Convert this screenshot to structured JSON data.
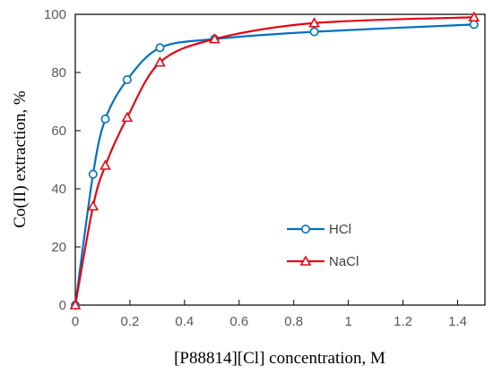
{
  "chart_data": {
    "type": "line",
    "xlabel": "[P88814][Cl] concentration, M",
    "ylabel": "Co(II) extraction, %",
    "xlim": [
      0,
      1.5
    ],
    "ylim": [
      0,
      100
    ],
    "xticks": [
      "0",
      "0.2",
      "0.4",
      "0.6",
      "0.8",
      "1",
      "1.2",
      "1.4"
    ],
    "yticks": [
      "0",
      "20",
      "40",
      "60",
      "80",
      "100"
    ],
    "grid": false,
    "legend_position": "center-right",
    "series": [
      {
        "name": "HCl",
        "color": "#0070c0",
        "marker": "circle",
        "x": [
          0,
          0.065,
          0.11,
          0.19,
          0.31,
          0.51,
          0.875,
          1.46
        ],
        "y": [
          0,
          45,
          64,
          77.5,
          88.5,
          91.5,
          94,
          96.5
        ]
      },
      {
        "name": "NaCl",
        "color": "#e30613",
        "marker": "triangle",
        "x": [
          0,
          0.065,
          0.11,
          0.19,
          0.31,
          0.51,
          0.875,
          1.46
        ],
        "y": [
          0,
          34,
          48,
          64.5,
          83.5,
          91.5,
          97,
          99
        ]
      }
    ]
  }
}
